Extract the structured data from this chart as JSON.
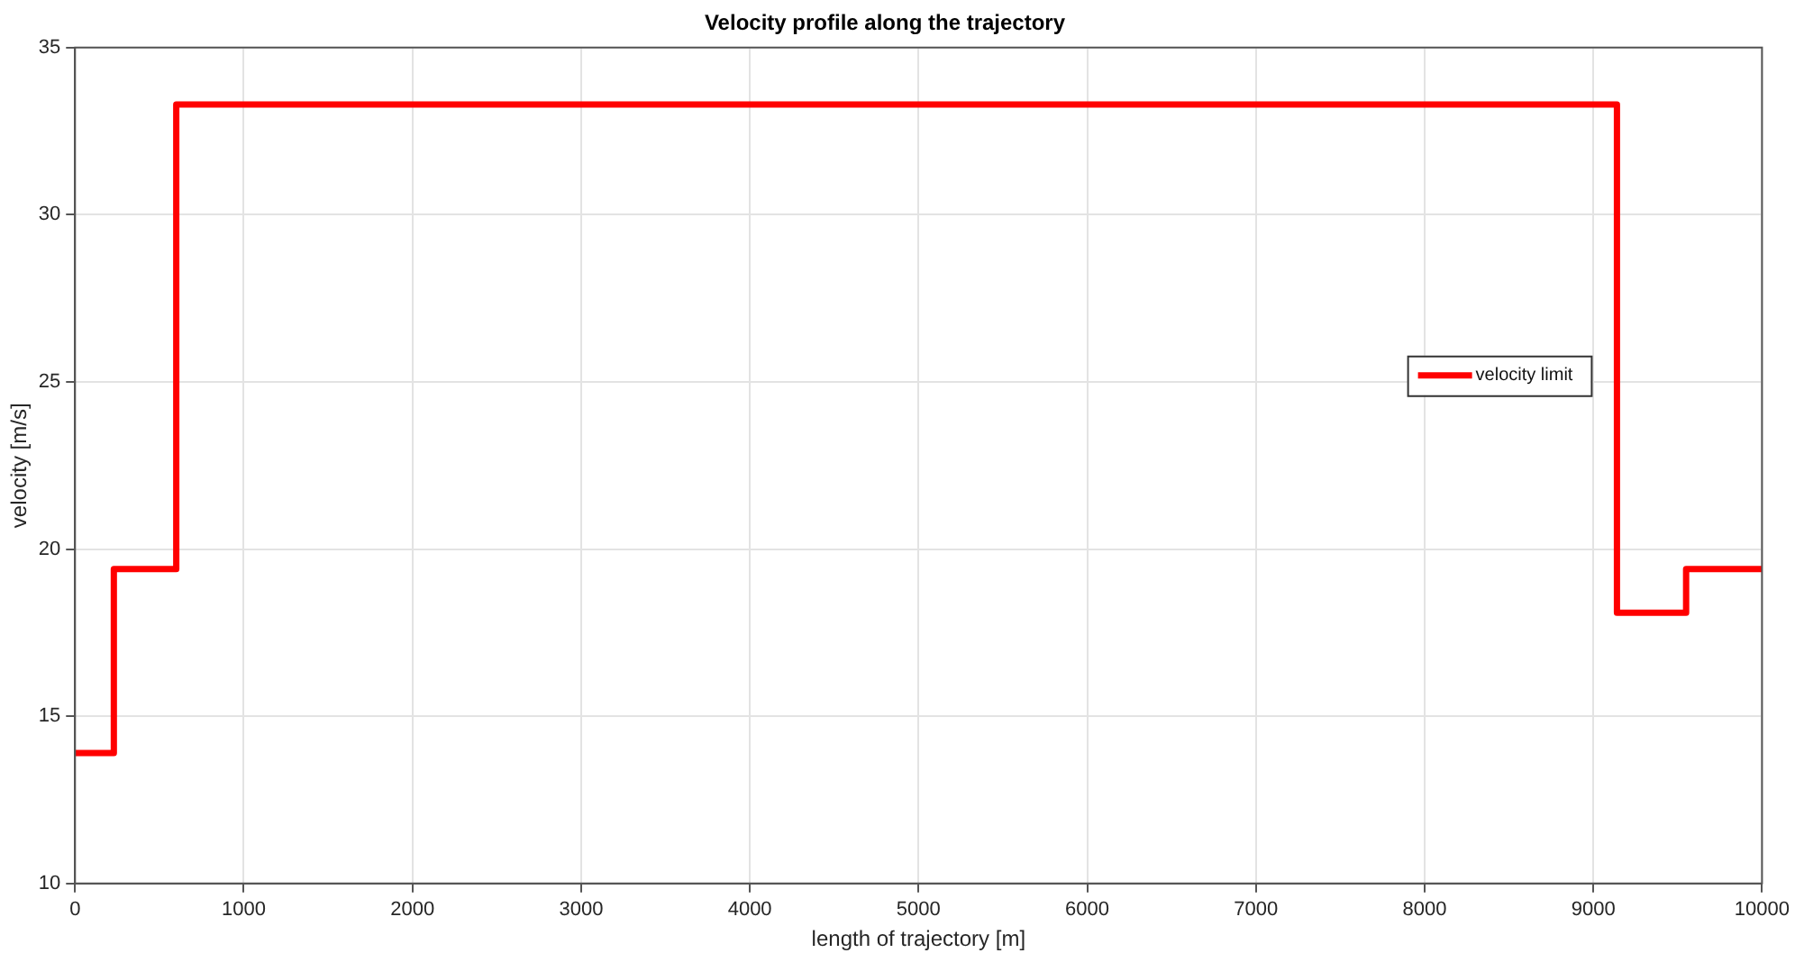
{
  "chart_data": {
    "type": "step",
    "title": "Velocity profile along the trajectory",
    "xlabel": "length of trajectory [m]",
    "ylabel": "velocity [m/s]",
    "x": [
      0,
      230,
      600,
      9140,
      9550,
      10000
    ],
    "series": [
      {
        "name": "velocity limit",
        "color": "#ff0000",
        "values": [
          13.9,
          19.4,
          33.3,
          18.1,
          19.4,
          19.4
        ]
      }
    ],
    "xlim": [
      0,
      10000
    ],
    "xticks": [
      0,
      1000,
      2000,
      3000,
      4000,
      5000,
      6000,
      7000,
      8000,
      9000,
      10000
    ],
    "ylim": [
      10,
      35
    ],
    "yticks": [
      10,
      15,
      20,
      25,
      30,
      35
    ],
    "grid": true,
    "legend": "right",
    "marker": "none",
    "line_style": "solid"
  }
}
